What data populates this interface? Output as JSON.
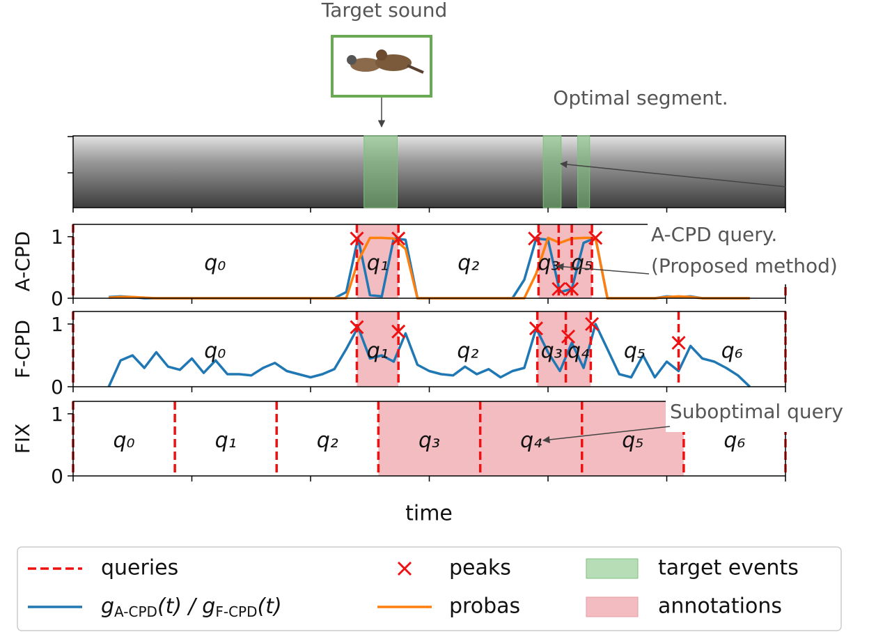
{
  "annotations": {
    "target_sound": "Target sound",
    "optimal_segment": "Optimal segment.",
    "acpd_query": [
      "A-CPD query.",
      "(Proposed method)"
    ],
    "suboptimal_query": "Suboptimal query"
  },
  "spectrogram": {
    "target_events": [
      [
        24.5,
        27.3
      ],
      [
        39.6,
        41.1
      ],
      [
        42.5,
        43.5
      ]
    ],
    "color": "#7cc17c"
  },
  "xlabel": "time",
  "chart_data": [
    {
      "type": "line",
      "ylabel": "A-CPD",
      "xlim": [
        0,
        60
      ],
      "xticks": [
        0,
        10,
        20,
        30,
        40,
        50,
        60
      ],
      "ylim": [
        0,
        1.2
      ],
      "yticks": [
        0,
        1
      ],
      "x": [
        3,
        4,
        5,
        6,
        7,
        8,
        9,
        10,
        11,
        12,
        13,
        14,
        15,
        16,
        17,
        18,
        19,
        20,
        21,
        22,
        23,
        24,
        25,
        26,
        27,
        28,
        29,
        30,
        31,
        32,
        33,
        34,
        35,
        36,
        37,
        38,
        39,
        40,
        41,
        42,
        43,
        44,
        45,
        46,
        47,
        48,
        49,
        50,
        51,
        52,
        53,
        54,
        55,
        56,
        57
      ],
      "series": [
        {
          "color": "#1f77b4",
          "values": [
            0.02,
            0.03,
            0.02,
            0,
            0,
            0,
            0,
            0,
            0,
            0,
            0,
            0,
            0,
            0,
            0,
            0,
            0,
            0,
            0,
            0,
            0.1,
            0.98,
            0.05,
            0.03,
            0.97,
            0.95,
            0,
            0,
            0,
            0,
            0,
            0,
            0,
            0,
            0,
            0.3,
            0.97,
            0.95,
            0.1,
            0.15,
            0.9,
            0.98,
            0,
            0,
            0,
            0,
            0,
            0.03,
            0.02,
            0.03,
            0,
            0,
            0,
            0,
            0
          ]
        },
        {
          "color": "#ff7f0e",
          "values": [
            0.01,
            0.02,
            0.02,
            0.01,
            0,
            0,
            0,
            0,
            0,
            0,
            0,
            0,
            0,
            0,
            0,
            0,
            0,
            0,
            0,
            0,
            0,
            0.6,
            0.98,
            0.98,
            0.97,
            0.8,
            0,
            0,
            0,
            0,
            0,
            0,
            0,
            0,
            0,
            0,
            0.4,
            0.98,
            0.9,
            0.97,
            0.98,
            0.98,
            0,
            0,
            0,
            0,
            0,
            0.02,
            0.03,
            0.02,
            0,
            0,
            0,
            0,
            0
          ]
        }
      ],
      "peaks": {
        "x": [
          23.9,
          27.4,
          38.9,
          40.9,
          42.0,
          44.0
        ],
        "y": [
          0.97,
          0.97,
          0.97,
          0.15,
          0.15,
          0.98
        ],
        "color": "#ee1111"
      },
      "queries": [
        0,
        23.9,
        27.4,
        39.2,
        40.9,
        42.0,
        43.7,
        60
      ],
      "query_color": "#ee1111",
      "query_labels": [
        "q₀",
        "q₁",
        "q₂",
        "q₃",
        null,
        "q₅",
        null
      ],
      "annotations": [
        [
          23.9,
          27.4
        ],
        [
          39.2,
          43.7
        ]
      ],
      "annotation_color": "#f2bcc0"
    },
    {
      "type": "line",
      "ylabel": "F-CPD",
      "xlim": [
        0,
        60
      ],
      "xticks": [
        0,
        10,
        20,
        30,
        40,
        50,
        60
      ],
      "ylim": [
        0,
        1.2
      ],
      "yticks": [
        0,
        1
      ],
      "x": [
        3,
        4,
        5,
        6,
        7,
        8,
        9,
        10,
        11,
        12,
        13,
        14,
        15,
        16,
        17,
        18,
        19,
        20,
        21,
        22,
        23,
        24,
        25,
        26,
        27,
        28,
        29,
        30,
        31,
        32,
        33,
        34,
        35,
        36,
        37,
        38,
        39,
        40,
        41,
        42,
        43,
        44,
        45,
        46,
        47,
        48,
        49,
        50,
        51,
        52,
        53,
        54,
        55,
        56,
        57
      ],
      "series": [
        {
          "color": "#1f77b4",
          "values": [
            0,
            0.42,
            0.5,
            0.3,
            0.55,
            0.32,
            0.27,
            0.45,
            0.22,
            0.42,
            0.2,
            0.2,
            0.18,
            0.3,
            0.38,
            0.25,
            0.2,
            0.15,
            0.2,
            0.28,
            0.6,
            0.95,
            0.45,
            0.5,
            0.4,
            0.85,
            0.35,
            0.25,
            0.2,
            0.18,
            0.32,
            0.2,
            0.28,
            0.15,
            0.25,
            0.3,
            0.93,
            0.55,
            0.25,
            0.7,
            0.3,
            1.0,
            0.6,
            0.2,
            0.15,
            0.5,
            0.15,
            0.4,
            0.25,
            0.65,
            0.45,
            0.4,
            0.3,
            0.18,
            0
          ]
        }
      ],
      "peaks": {
        "x": [
          23.9,
          27.4,
          39.0,
          41.7,
          43.7,
          51.0
        ],
        "y": [
          0.95,
          0.88,
          0.93,
          0.8,
          1.0,
          0.7
        ],
        "color": "#ee1111"
      },
      "queries": [
        0,
        23.9,
        27.4,
        39.1,
        41.5,
        43.6,
        51.0,
        60
      ],
      "query_color": "#ee1111",
      "query_labels": [
        "q₀",
        "q₁",
        "q₂",
        "q₃",
        "q₄",
        "q₅",
        "q₆"
      ],
      "annotations": [
        [
          23.9,
          27.4
        ],
        [
          39.1,
          43.6
        ]
      ],
      "annotation_color": "#f2bcc0"
    },
    {
      "type": "line",
      "ylabel": "FIX",
      "xlim": [
        0,
        60
      ],
      "xticks": [
        0,
        10,
        20,
        30,
        40,
        50,
        60
      ],
      "ylim": [
        0,
        1.2
      ],
      "yticks": [
        0,
        1
      ],
      "x": [],
      "series": [],
      "queries": [
        0,
        8.57,
        17.14,
        25.71,
        34.29,
        42.86,
        51.43,
        60
      ],
      "query_color": "#ee1111",
      "query_labels": [
        "q₀",
        "q₁",
        "q₂",
        "q₃",
        "q₄",
        "q₅",
        "q₆"
      ],
      "annotations": [
        [
          25.71,
          51.43
        ]
      ],
      "annotation_color": "#f2bcc0"
    }
  ],
  "legend": {
    "queries": "queries",
    "g": [
      {
        "text": "g"
      },
      {
        "text": "A-CPD",
        "sub": true
      },
      {
        "text": "(t) / "
      },
      {
        "text": "g"
      },
      {
        "text": "F-CPD",
        "sub": true
      },
      {
        "text": "(t)"
      }
    ],
    "peaks": "peaks",
    "probas": "probas",
    "target_events": "target events",
    "annotations": "annotations"
  }
}
